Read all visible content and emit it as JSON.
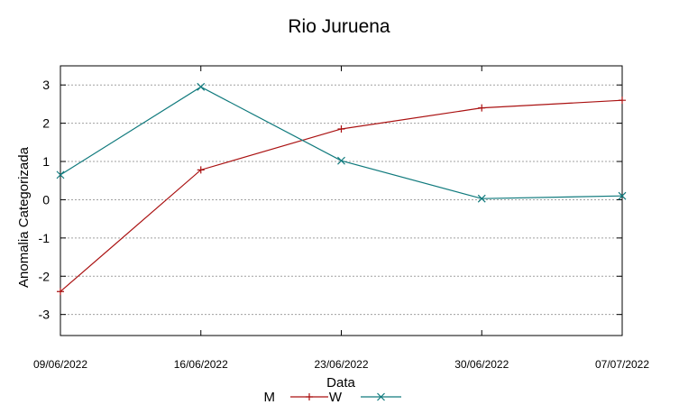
{
  "chart_data": {
    "type": "line",
    "title": "Rio Juruena",
    "xlabel": "Data",
    "ylabel": "Anomalia Categorizada",
    "categories": [
      "09/06/2022",
      "16/06/2022",
      "23/06/2022",
      "30/06/2022",
      "07/07/2022"
    ],
    "yticks": [
      -3,
      -2,
      -1,
      0,
      1,
      2,
      3
    ],
    "ylim": [
      -3.55,
      3.5
    ],
    "grid": true,
    "legend_position": "bottom",
    "series": [
      {
        "name": "M",
        "color": "#aa1111",
        "marker": "plus",
        "values": [
          -2.4,
          0.78,
          1.85,
          2.4,
          2.6
        ]
      },
      {
        "name": "W",
        "color": "#107a7d",
        "marker": "cross",
        "values": [
          0.65,
          2.95,
          1.02,
          0.03,
          0.1
        ]
      }
    ]
  }
}
